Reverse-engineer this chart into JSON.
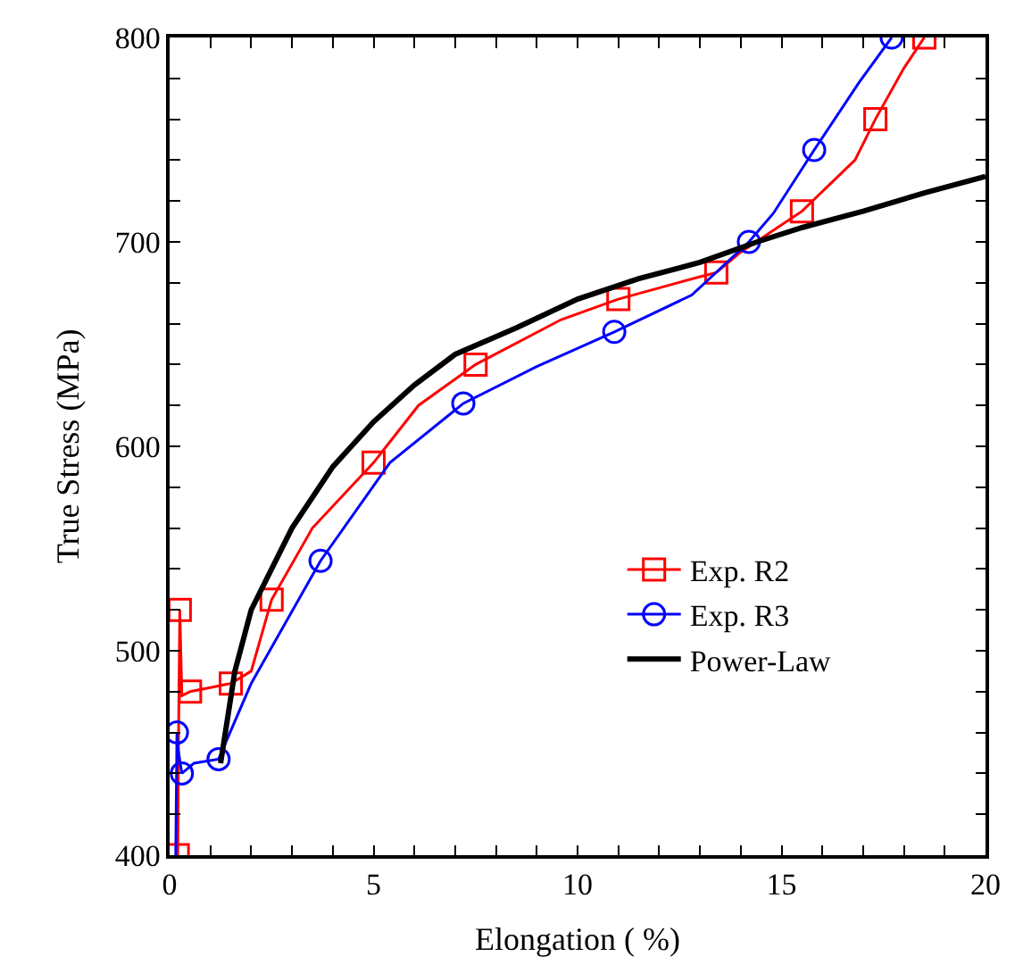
{
  "chart_data": {
    "type": "line",
    "xlabel": "Elongation ( %)",
    "ylabel": "True Stress (MPa)",
    "xlim": [
      0,
      20
    ],
    "ylim": [
      400,
      800
    ],
    "xticks": [
      0,
      {
        "value": 1,
        "label": null
      },
      {
        "value": 2,
        "label": null
      },
      {
        "value": 3,
        "label": null
      },
      {
        "value": 4,
        "label": null
      },
      5,
      {
        "value": 6,
        "label": null
      },
      {
        "value": 7,
        "label": null
      },
      {
        "value": 8,
        "label": null
      },
      {
        "value": 9,
        "label": null
      },
      10,
      {
        "value": 11,
        "label": null
      },
      {
        "value": 12,
        "label": null
      },
      {
        "value": 13,
        "label": null
      },
      {
        "value": 14,
        "label": null
      },
      15,
      {
        "value": 16,
        "label": null
      },
      {
        "value": 17,
        "label": null
      },
      {
        "value": 18,
        "label": null
      },
      {
        "value": 19,
        "label": null
      },
      20
    ],
    "yticks": [
      400,
      {
        "value": 420,
        "label": null
      },
      {
        "value": 440,
        "label": null
      },
      {
        "value": 460,
        "label": null
      },
      {
        "value": 480,
        "label": null
      },
      500,
      {
        "value": 520,
        "label": null
      },
      {
        "value": 540,
        "label": null
      },
      {
        "value": 560,
        "label": null
      },
      {
        "value": 580,
        "label": null
      },
      600,
      {
        "value": 620,
        "label": null
      },
      {
        "value": 640,
        "label": null
      },
      {
        "value": 660,
        "label": null
      },
      {
        "value": 680,
        "label": null
      },
      700,
      {
        "value": 720,
        "label": null
      },
      {
        "value": 740,
        "label": null
      },
      {
        "value": 760,
        "label": null
      },
      {
        "value": 780,
        "label": null
      },
      800
    ],
    "legend": "bottom right",
    "series": [
      {
        "name": "Exp. R2",
        "color": "#ff0000",
        "marker": "square",
        "x": [
          0.2,
          0.22,
          0.25,
          0.3,
          0.5,
          1.0,
          1.5,
          2.0,
          2.5,
          3.5,
          5.0,
          6.1,
          7.5,
          9.6,
          11.0,
          13.0,
          13.4,
          14.0,
          15.5,
          16.8,
          17.3,
          18.0,
          18.5
        ],
        "values": [
          400,
          460,
          520,
          478,
          480,
          482,
          484,
          490,
          525,
          560,
          592,
          620,
          640,
          662,
          672,
          683,
          685,
          695,
          715,
          740,
          760,
          785,
          800
        ]
      },
      {
        "name": "Exp. R3",
        "color": "#0000ff",
        "marker": "circle",
        "x": [
          0.15,
          0.18,
          0.2,
          0.3,
          0.6,
          1.2,
          2.0,
          3.7,
          5.4,
          7.2,
          9.0,
          10.9,
          12.8,
          14.2,
          14.8,
          15.8,
          16.9,
          17.7
        ],
        "values": [
          400,
          460,
          453,
          440,
          445,
          447,
          484,
          544,
          592,
          621,
          639,
          656,
          674,
          700,
          714,
          745,
          778,
          800
        ]
      },
      {
        "name": "Power-Law",
        "color": "#000000",
        "marker": "none",
        "x": [
          1.25,
          1.6,
          2.0,
          3.0,
          4.0,
          5.0,
          6.0,
          7.0,
          8.5,
          10.0,
          11.5,
          13.0,
          14.4,
          15.5,
          17.0,
          18.5,
          20.0
        ],
        "values": [
          445,
          490,
          520,
          560,
          590,
          612,
          630,
          645,
          658,
          672,
          682,
          690,
          700,
          707,
          715,
          724,
          732
        ]
      }
    ]
  }
}
